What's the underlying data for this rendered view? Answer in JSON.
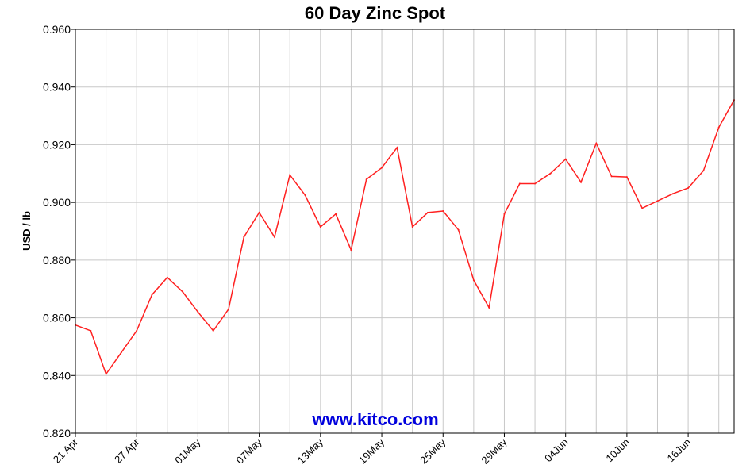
{
  "chart_data": {
    "type": "line",
    "title": "60 Day Zinc Spot",
    "ylabel": "USD / lb",
    "xlabel": "",
    "ylim": [
      0.82,
      0.96
    ],
    "yticks": [
      "0.820",
      "0.840",
      "0.860",
      "0.880",
      "0.900",
      "0.920",
      "0.940",
      "0.960"
    ],
    "xticks": [
      "21 Apr",
      "27 Apr",
      "01May",
      "07May",
      "13May",
      "19May",
      "25May",
      "29May",
      "04Jun",
      "10Jun",
      "16Jun"
    ],
    "xtick_index": [
      0,
      4,
      8,
      12,
      16,
      20,
      24,
      28,
      32,
      36,
      40
    ],
    "grid": true,
    "line_color": "#ff2020",
    "watermark": "www.kitco.com",
    "series": [
      {
        "values": [
          0.8575,
          0.8555,
          0.8405,
          0.848,
          0.8555,
          0.868,
          0.874,
          0.869,
          0.862,
          0.8555,
          0.863,
          0.888,
          0.8965,
          0.888,
          0.9095,
          0.9025,
          0.8915,
          0.896,
          0.8835,
          0.908,
          0.912,
          0.919,
          0.8915,
          0.8965,
          0.897,
          0.8905,
          0.873,
          0.8635,
          0.896,
          0.9065,
          0.9065,
          0.91,
          0.915,
          0.907,
          0.9205,
          0.909,
          0.9088,
          0.898,
          0.9005,
          0.903,
          0.905,
          0.911,
          0.926,
          0.9355
        ]
      }
    ]
  }
}
